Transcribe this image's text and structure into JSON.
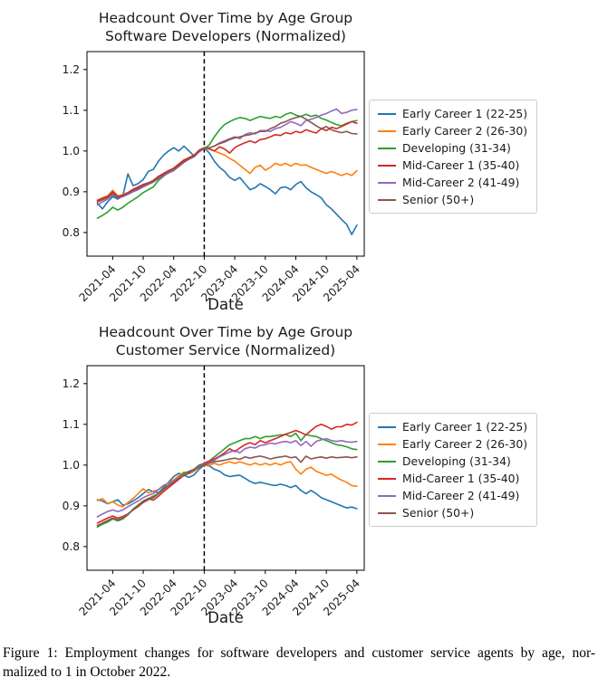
{
  "figure": {
    "caption_lines": [
      "Figure 1:  Employment changes for software developers and customer service agents by age, nor-",
      "malized to 1 in October 2022."
    ]
  },
  "chart_data": [
    {
      "type": "line",
      "title": [
        "Headcount Over Time by Age Group",
        "Software Developers (Normalized)"
      ],
      "xlabel": "Date",
      "ylabel": "",
      "x_frequency": "monthly",
      "x_start": "2021-01",
      "x_end": "2025-04",
      "x_tick_labels": [
        "2021-04",
        "2021-10",
        "2022-04",
        "2022-10",
        "2023-04",
        "2023-10",
        "2024-04",
        "2024-10",
        "2025-04"
      ],
      "x_tick_month_index": [
        3,
        9,
        15,
        21,
        27,
        33,
        39,
        45,
        51
      ],
      "yticks": [
        0.8,
        0.9,
        1.0,
        1.1,
        1.2
      ],
      "ytick_labels": [
        "0.8",
        "0.9",
        "1.0",
        "1.1",
        "1.2"
      ],
      "ylim": [
        0.742,
        1.244
      ],
      "grid": false,
      "vline": {
        "month": "2022-10",
        "index": 21,
        "style": "dashed",
        "color": "#000000"
      },
      "legend_position": "outside right",
      "series": [
        {
          "name": "Early Career 1 (22-25)",
          "color": "#1f77b4",
          "values": [
            0.872,
            0.858,
            0.875,
            0.888,
            0.882,
            0.89,
            0.944,
            0.915,
            0.92,
            0.93,
            0.95,
            0.955,
            0.975,
            0.99,
            1.0,
            1.008,
            1.0,
            1.012,
            1.0,
            0.988,
            1.0,
            1.008,
            0.995,
            0.975,
            0.96,
            0.95,
            0.935,
            0.928,
            0.935,
            0.92,
            0.905,
            0.91,
            0.92,
            0.913,
            0.905,
            0.895,
            0.91,
            0.912,
            0.905,
            0.918,
            0.925,
            0.91,
            0.9,
            0.893,
            0.885,
            0.868,
            0.858,
            0.845,
            0.832,
            0.82,
            0.795,
            0.818
          ]
        },
        {
          "name": "Early Career 2 (26-30)",
          "color": "#ff7f0e",
          "values": [
            0.88,
            0.885,
            0.89,
            0.904,
            0.89,
            0.893,
            0.898,
            0.905,
            0.91,
            0.916,
            0.92,
            0.925,
            0.935,
            0.942,
            0.95,
            0.956,
            0.965,
            0.975,
            0.98,
            0.986,
            1.0,
            1.007,
            1.005,
            1.0,
            0.995,
            0.99,
            0.982,
            0.975,
            0.965,
            0.955,
            0.945,
            0.96,
            0.965,
            0.953,
            0.96,
            0.97,
            0.965,
            0.97,
            0.963,
            0.97,
            0.965,
            0.966,
            0.96,
            0.955,
            0.95,
            0.945,
            0.95,
            0.945,
            0.94,
            0.945,
            0.94,
            0.952
          ]
        },
        {
          "name": "Developing (31-34)",
          "color": "#2ca02c",
          "values": [
            0.835,
            0.842,
            0.85,
            0.862,
            0.855,
            0.862,
            0.872,
            0.88,
            0.888,
            0.898,
            0.905,
            0.912,
            0.928,
            0.938,
            0.948,
            0.955,
            0.965,
            0.975,
            0.982,
            0.988,
            1.0,
            1.006,
            1.015,
            1.035,
            1.052,
            1.065,
            1.072,
            1.078,
            1.082,
            1.08,
            1.075,
            1.08,
            1.085,
            1.082,
            1.08,
            1.085,
            1.082,
            1.09,
            1.094,
            1.088,
            1.085,
            1.09,
            1.085,
            1.088,
            1.08,
            1.076,
            1.07,
            1.065,
            1.062,
            1.068,
            1.072,
            1.075
          ]
        },
        {
          "name": "Mid-Career 1 (35-40)",
          "color": "#d62728",
          "values": [
            0.878,
            0.884,
            0.888,
            0.9,
            0.888,
            0.892,
            0.898,
            0.906,
            0.912,
            0.918,
            0.922,
            0.928,
            0.938,
            0.945,
            0.952,
            0.958,
            0.968,
            0.978,
            0.984,
            0.99,
            1.002,
            1.008,
            1.005,
            1.0,
            1.01,
            1.005,
            0.995,
            1.008,
            1.015,
            1.02,
            1.025,
            1.02,
            1.028,
            1.03,
            1.035,
            1.04,
            1.038,
            1.045,
            1.042,
            1.048,
            1.045,
            1.052,
            1.048,
            1.044,
            1.055,
            1.05,
            1.058,
            1.055,
            1.06,
            1.066,
            1.072,
            1.068
          ]
        },
        {
          "name": "Mid-Career 2 (41-49)",
          "color": "#9467bd",
          "values": [
            0.868,
            0.875,
            0.882,
            0.892,
            0.885,
            0.888,
            0.894,
            0.9,
            0.905,
            0.912,
            0.918,
            0.924,
            0.932,
            0.94,
            0.946,
            0.952,
            0.962,
            0.972,
            0.98,
            0.986,
            0.998,
            1.006,
            1.008,
            1.012,
            1.02,
            1.025,
            1.03,
            1.035,
            1.03,
            1.04,
            1.045,
            1.042,
            1.05,
            1.05,
            1.048,
            1.055,
            1.058,
            1.065,
            1.072,
            1.068,
            1.062,
            1.075,
            1.078,
            1.082,
            1.088,
            1.092,
            1.098,
            1.103,
            1.092,
            1.095,
            1.1,
            1.102
          ]
        },
        {
          "name": "Senior (50+)",
          "color": "#8c564b",
          "values": [
            0.875,
            0.88,
            0.886,
            0.896,
            0.886,
            0.89,
            0.896,
            0.903,
            0.908,
            0.915,
            0.92,
            0.926,
            0.935,
            0.942,
            0.95,
            0.955,
            0.964,
            0.974,
            0.981,
            0.987,
            0.999,
            1.007,
            1.008,
            1.012,
            1.018,
            1.022,
            1.028,
            1.032,
            1.035,
            1.038,
            1.04,
            1.044,
            1.048,
            1.048,
            1.055,
            1.06,
            1.068,
            1.072,
            1.078,
            1.082,
            1.085,
            1.078,
            1.07,
            1.062,
            1.055,
            1.06,
            1.052,
            1.048,
            1.045,
            1.048,
            1.043,
            1.042
          ]
        }
      ]
    },
    {
      "type": "line",
      "title": [
        "Headcount Over Time by Age Group",
        "Customer Service (Normalized)"
      ],
      "xlabel": "Date",
      "ylabel": "",
      "x_frequency": "monthly",
      "x_start": "2021-01",
      "x_end": "2025-04",
      "x_tick_labels": [
        "2021-04",
        "2021-10",
        "2022-04",
        "2022-10",
        "2023-04",
        "2023-10",
        "2024-04",
        "2024-10",
        "2025-04"
      ],
      "x_tick_month_index": [
        3,
        9,
        15,
        21,
        27,
        33,
        39,
        45,
        51
      ],
      "yticks": [
        0.8,
        0.9,
        1.0,
        1.1,
        1.2
      ],
      "ytick_labels": [
        "0.8",
        "0.9",
        "1.0",
        "1.1",
        "1.2"
      ],
      "ylim": [
        0.742,
        1.244
      ],
      "grid": false,
      "vline": {
        "month": "2022-10",
        "index": 21,
        "style": "dashed",
        "color": "#000000"
      },
      "legend_position": "outside right",
      "series": [
        {
          "name": "Early Career 1 (22-25)",
          "color": "#1f77b4",
          "values": [
            0.915,
            0.912,
            0.905,
            0.91,
            0.915,
            0.902,
            0.905,
            0.912,
            0.92,
            0.93,
            0.94,
            0.935,
            0.932,
            0.945,
            0.958,
            0.972,
            0.98,
            0.975,
            0.97,
            0.976,
            0.99,
            1.0,
            0.998,
            0.99,
            0.985,
            0.976,
            0.972,
            0.974,
            0.975,
            0.968,
            0.96,
            0.955,
            0.958,
            0.955,
            0.952,
            0.95,
            0.953,
            0.95,
            0.945,
            0.95,
            0.938,
            0.93,
            0.938,
            0.93,
            0.92,
            0.915,
            0.91,
            0.905,
            0.9,
            0.895,
            0.897,
            0.893
          ]
        },
        {
          "name": "Early Career 2 (26-30)",
          "color": "#ff7f0e",
          "values": [
            0.913,
            0.918,
            0.906,
            0.91,
            0.902,
            0.898,
            0.908,
            0.918,
            0.93,
            0.942,
            0.932,
            0.936,
            0.94,
            0.95,
            0.956,
            0.964,
            0.974,
            0.983,
            0.979,
            0.985,
            0.995,
            1.0,
            1.0,
            1.004,
            1.0,
            1.005,
            1.008,
            1.004,
            1.008,
            1.004,
            1.0,
            1.005,
            1.0,
            1.004,
            1.0,
            1.005,
            1.0,
            1.006,
            1.008,
            0.99,
            0.978,
            0.99,
            0.995,
            0.985,
            0.98,
            0.975,
            0.978,
            0.97,
            0.963,
            0.958,
            0.95,
            0.948
          ]
        },
        {
          "name": "Developing (31-34)",
          "color": "#2ca02c",
          "values": [
            0.848,
            0.855,
            0.86,
            0.868,
            0.863,
            0.868,
            0.878,
            0.892,
            0.902,
            0.912,
            0.918,
            0.924,
            0.93,
            0.944,
            0.95,
            0.96,
            0.97,
            0.98,
            0.985,
            0.99,
            1.0,
            1.004,
            1.01,
            1.02,
            1.03,
            1.04,
            1.05,
            1.055,
            1.06,
            1.065,
            1.065,
            1.07,
            1.065,
            1.07,
            1.07,
            1.072,
            1.074,
            1.075,
            1.07,
            1.078,
            1.06,
            1.075,
            1.072,
            1.07,
            1.065,
            1.06,
            1.055,
            1.05,
            1.048,
            1.045,
            1.04,
            1.038
          ]
        },
        {
          "name": "Mid-Career 1 (35-40)",
          "color": "#d62728",
          "values": [
            0.858,
            0.864,
            0.87,
            0.875,
            0.87,
            0.874,
            0.88,
            0.89,
            0.9,
            0.91,
            0.918,
            0.914,
            0.924,
            0.935,
            0.945,
            0.955,
            0.965,
            0.975,
            0.98,
            0.99,
            0.996,
            1.005,
            1.01,
            1.015,
            1.022,
            1.03,
            1.04,
            1.033,
            1.042,
            1.05,
            1.055,
            1.05,
            1.06,
            1.055,
            1.06,
            1.065,
            1.07,
            1.076,
            1.08,
            1.085,
            1.08,
            1.074,
            1.085,
            1.095,
            1.1,
            1.095,
            1.088,
            1.094,
            1.094,
            1.1,
            1.098,
            1.105
          ]
        },
        {
          "name": "Mid-Career 2 (41-49)",
          "color": "#9467bd",
          "values": [
            0.873,
            0.88,
            0.886,
            0.89,
            0.886,
            0.89,
            0.898,
            0.905,
            0.912,
            0.92,
            0.926,
            0.93,
            0.94,
            0.95,
            0.955,
            0.96,
            0.97,
            0.976,
            0.984,
            0.99,
            0.996,
            1.002,
            1.006,
            1.012,
            1.02,
            1.026,
            1.032,
            1.036,
            1.03,
            1.04,
            1.044,
            1.042,
            1.048,
            1.05,
            1.054,
            1.052,
            1.056,
            1.058,
            1.055,
            1.06,
            1.048,
            1.058,
            1.046,
            1.058,
            1.062,
            1.065,
            1.06,
            1.058,
            1.06,
            1.057,
            1.056,
            1.058
          ]
        },
        {
          "name": "Senior (50+)",
          "color": "#8c564b",
          "values": [
            0.852,
            0.858,
            0.864,
            0.87,
            0.866,
            0.87,
            0.88,
            0.89,
            0.898,
            0.908,
            0.915,
            0.92,
            0.93,
            0.94,
            0.95,
            0.958,
            0.967,
            0.975,
            0.982,
            0.988,
            0.995,
            1.0,
            1.005,
            1.008,
            1.01,
            1.012,
            1.015,
            1.017,
            1.014,
            1.02,
            1.017,
            1.02,
            1.022,
            1.019,
            1.015,
            1.018,
            1.02,
            1.022,
            1.018,
            1.02,
            1.007,
            1.022,
            1.015,
            1.018,
            1.02,
            1.017,
            1.02,
            1.018,
            1.019,
            1.02,
            1.018,
            1.02
          ]
        }
      ]
    }
  ]
}
